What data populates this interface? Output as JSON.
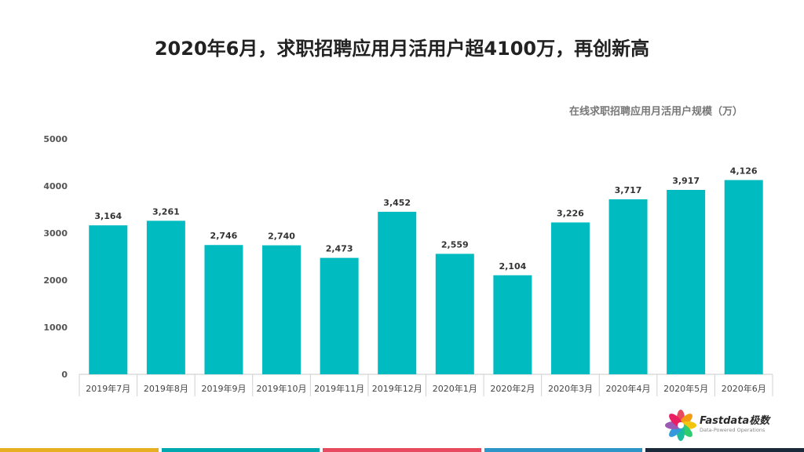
{
  "page": {
    "title": "2020年6月，求职招聘应用月活用户超4100万，再创新高",
    "legend_title": "在线求职招聘应用月活用户规模（万）"
  },
  "logo": {
    "name": "Fastdata极数",
    "tagline": "Data-Powered Operations"
  },
  "colors": {
    "bar": "#00BCC0",
    "grid": "#d9d9d9",
    "bottom_stripes": [
      "#E6B022",
      "#00A9B0",
      "#E84A5F",
      "#2E95C8",
      "#1B2A3A"
    ]
  },
  "chart_data": {
    "type": "bar",
    "title": "在线求职招聘应用月活用户规模（万）",
    "categories": [
      "2019年7月",
      "2019年8月",
      "2019年9月",
      "2019年10月",
      "2019年11月",
      "2019年12月",
      "2020年1月",
      "2020年2月",
      "2020年3月",
      "2020年4月",
      "2020年5月",
      "2020年6月"
    ],
    "values": [
      3164,
      3261,
      2746,
      2740,
      2473,
      3452,
      2559,
      2104,
      3226,
      3717,
      3917,
      4126
    ],
    "data_labels": [
      "3,164",
      "3,261",
      "2,746",
      "2,740",
      "2,473",
      "3,452",
      "2,559",
      "2,104",
      "3,226",
      "3,717",
      "3,917",
      "4,126"
    ],
    "y_ticks": [
      0,
      1000,
      2000,
      3000,
      4000,
      5000
    ],
    "ylim": [
      0,
      5000
    ],
    "xlabel": "",
    "ylabel": "",
    "grid": false
  }
}
